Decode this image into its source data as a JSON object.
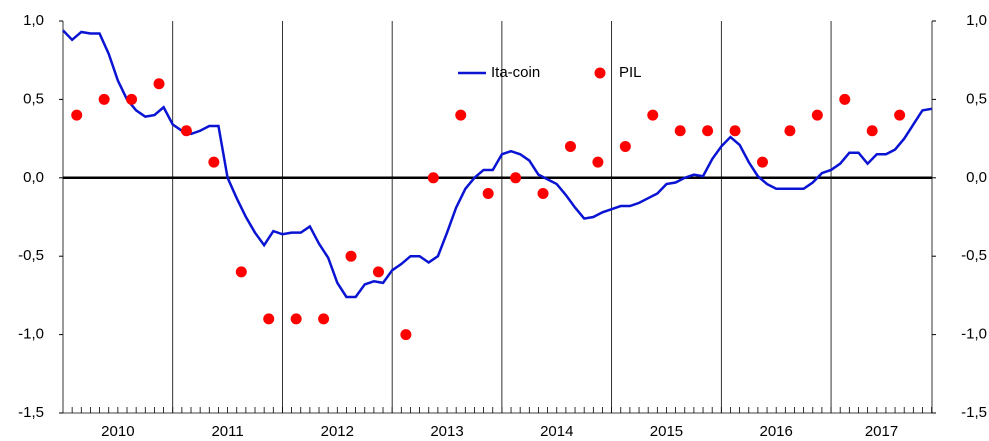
{
  "chart_data": {
    "type": "line-scatter",
    "xlim": [
      2010,
      2017.92
    ],
    "xticks": [
      {
        "value": 2010,
        "label": "2010"
      },
      {
        "value": 2011,
        "label": "2011"
      },
      {
        "value": 2012,
        "label": "2012"
      },
      {
        "value": 2013,
        "label": "2013"
      },
      {
        "value": 2014,
        "label": "2014"
      },
      {
        "value": 2015,
        "label": "2015"
      },
      {
        "value": 2016,
        "label": "2016"
      },
      {
        "value": 2017,
        "label": "2017"
      }
    ],
    "ylim": [
      -1.5,
      1
    ],
    "yticks": [
      {
        "value": -1.5,
        "label": "-1,5"
      },
      {
        "value": -1,
        "label": "-1,0"
      },
      {
        "value": -0.5,
        "label": "-0,5"
      },
      {
        "value": 0,
        "label": "0,0"
      },
      {
        "value": 0.5,
        "label": "0,5"
      },
      {
        "value": 1,
        "label": "1,0"
      }
    ],
    "series": [
      {
        "name": "Ita-coin",
        "kind": "line",
        "color": "#0a14d2",
        "x": [
          2010,
          2010.083,
          2010.167,
          2010.25,
          2010.333,
          2010.417,
          2010.5,
          2010.583,
          2010.667,
          2010.75,
          2010.833,
          2010.917,
          2011,
          2011.083,
          2011.167,
          2011.25,
          2011.333,
          2011.417,
          2011.5,
          2011.583,
          2011.667,
          2011.75,
          2011.833,
          2011.917,
          2012,
          2012.083,
          2012.167,
          2012.25,
          2012.333,
          2012.417,
          2012.5,
          2012.583,
          2012.667,
          2012.75,
          2012.833,
          2012.917,
          2013,
          2013.083,
          2013.167,
          2013.25,
          2013.333,
          2013.417,
          2013.5,
          2013.583,
          2013.667,
          2013.75,
          2013.833,
          2013.917,
          2014,
          2014.083,
          2014.167,
          2014.25,
          2014.333,
          2014.417,
          2014.5,
          2014.583,
          2014.667,
          2014.75,
          2014.833,
          2014.917,
          2015,
          2015.083,
          2015.167,
          2015.25,
          2015.333,
          2015.417,
          2015.5,
          2015.583,
          2015.667,
          2015.75,
          2015.833,
          2015.917,
          2016,
          2016.083,
          2016.167,
          2016.25,
          2016.333,
          2016.417,
          2016.5,
          2016.583,
          2016.667,
          2016.75,
          2016.833,
          2016.917,
          2017,
          2017.083,
          2017.167,
          2017.25,
          2017.333,
          2017.417,
          2017.5,
          2017.583,
          2017.667,
          2017.75,
          2017.833,
          2017.917
        ],
        "values": [
          0.94,
          0.88,
          0.93,
          0.92,
          0.92,
          0.79,
          0.62,
          0.5,
          0.43,
          0.39,
          0.4,
          0.45,
          0.34,
          0.3,
          0.28,
          0.3,
          0.33,
          0.33,
          0,
          -0.13,
          -0.25,
          -0.35,
          -0.43,
          -0.34,
          -0.36,
          -0.35,
          -0.35,
          -0.31,
          -0.42,
          -0.51,
          -0.67,
          -0.76,
          -0.76,
          -0.68,
          -0.66,
          -0.67,
          -0.59,
          -0.55,
          -0.5,
          -0.5,
          -0.54,
          -0.5,
          -0.35,
          -0.19,
          -0.07,
          0,
          0.05,
          0.05,
          0.15,
          0.17,
          0.15,
          0.11,
          0.02,
          -0.01,
          -0.04,
          -0.11,
          -0.19,
          -0.26,
          -0.25,
          -0.22,
          -0.2,
          -0.18,
          -0.18,
          -0.16,
          -0.13,
          -0.1,
          -0.04,
          -0.03,
          0,
          0.02,
          0.01,
          0.12,
          0.2,
          0.26,
          0.21,
          0.1,
          0.01,
          -0.04,
          -0.07,
          -0.07,
          -0.07,
          -0.07,
          -0.03,
          0.03,
          0.05,
          0.09,
          0.16,
          0.16,
          0.09,
          0.15,
          0.15,
          0.18,
          0.25,
          0.34,
          0.43,
          0.44
        ]
      },
      {
        "name": "PIL",
        "kind": "scatter",
        "color": "#ff0000",
        "x": [
          2010.125,
          2010.375,
          2010.625,
          2010.875,
          2011.125,
          2011.375,
          2011.625,
          2011.875,
          2012.125,
          2012.375,
          2012.625,
          2012.875,
          2013.125,
          2013.375,
          2013.625,
          2013.875,
          2014.125,
          2014.375,
          2014.625,
          2014.875,
          2015.125,
          2015.375,
          2015.625,
          2015.875,
          2016.125,
          2016.375,
          2016.625,
          2016.875,
          2017.125,
          2017.375,
          2017.625
        ],
        "values": [
          0.4,
          0.5,
          0.5,
          0.6,
          0.3,
          0.1,
          -0.6,
          -0.9,
          -0.9,
          -0.9,
          -0.5,
          -0.6,
          -1,
          0,
          0.4,
          -0.1,
          0,
          -0.1,
          0.2,
          0.1,
          0.2,
          0.4,
          0.3,
          0.3,
          0.3,
          0.1,
          0.3,
          0.4,
          0.5,
          0.3,
          0.4
        ]
      }
    ]
  }
}
